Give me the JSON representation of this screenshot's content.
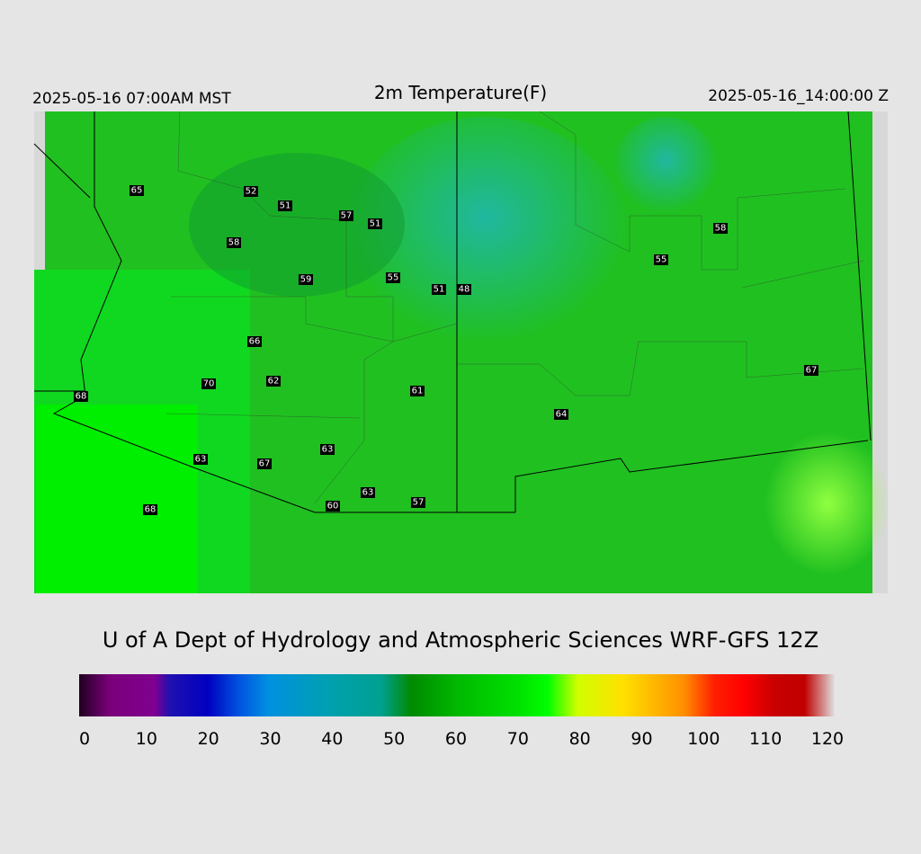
{
  "header": {
    "left": "2025-05-16 07:00AM MST",
    "title": "2m Temperature(F)",
    "right": "2025-05-16_14:00:00 Z"
  },
  "stations": [
    65,
    52,
    51,
    57,
    51,
    58,
    59,
    55,
    51,
    48,
    58,
    55,
    66,
    70,
    62,
    61,
    68,
    67,
    64,
    63,
    67,
    63,
    63,
    60,
    57,
    68
  ],
  "credit": "U of A Dept of Hydrology and Atmospheric Sciences WRF-GFS 12Z",
  "colorbar": {
    "lim": [
      0,
      120
    ],
    "ticks": [
      0,
      10,
      20,
      30,
      40,
      50,
      60,
      70,
      80,
      90,
      100,
      110,
      120
    ]
  }
}
